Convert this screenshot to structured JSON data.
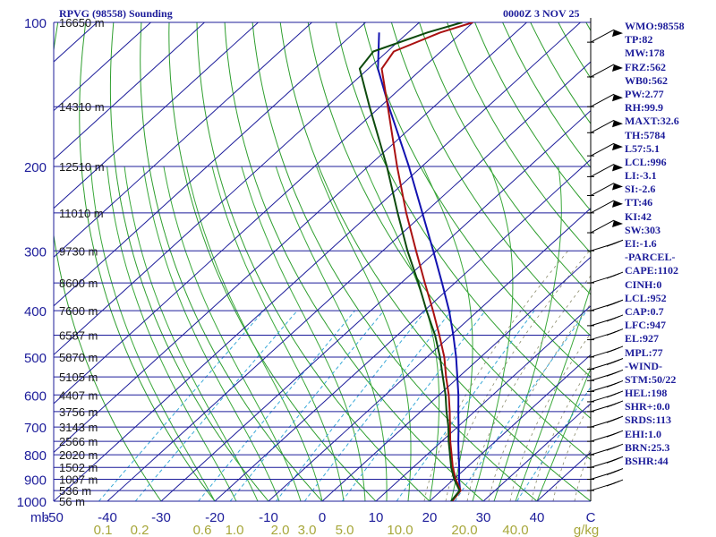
{
  "header": {
    "station": "RPVG (98558) Sounding",
    "time": "0000Z  3 NOV 25"
  },
  "indices": [
    "WMO:98558",
    "TP:82",
    "MW:178",
    "FRZ:562",
    "WB0:562",
    "PW:2.77",
    "RH:99.9",
    "MAXT:32.6",
    "TH:5784",
    "L57:5.1",
    "LCL:996",
    "LI:-3.1",
    "SI:-2.6",
    "TT:46",
    "KI:42",
    "SW:303",
    "EI:-1.6",
    "-PARCEL-",
    "CAPE:1102",
    "CINH:0",
    "LCL:952",
    "CAP:0.7",
    "LFC:947",
    "EL:927",
    "MPL:77",
    "-WIND-",
    "STM:50/22",
    "HEL:198",
    "SHR+:0.0",
    "SRDS:113",
    "EHI:1.0",
    "BRN:25.3",
    "BSHR:44"
  ],
  "colors": {
    "isobar": "#1c1c9a",
    "isotherm": "#1c1c9a",
    "dry_adiabat": "#2e9e2e",
    "moist_adiabat": "#3aa83a",
    "mixing_ratio": "#39a9d8",
    "saturation": "#8a8a6a",
    "temperature": "#aa1111",
    "dewpoint": "#0d4a0d",
    "parcel": "#1212b0",
    "text": "#1c1c9a",
    "mixing_label": "#a7a73a"
  },
  "chart_data": {
    "type": "line",
    "chart_kind": "skew-T log-P sounding",
    "pressure_axis": {
      "range": [
        1000,
        100
      ],
      "ticks": [
        100,
        200,
        300,
        400,
        500,
        600,
        700,
        800,
        900,
        1000
      ],
      "scale": "log",
      "unit_label": "mb"
    },
    "temperature_axis": {
      "range": [
        -50,
        50
      ],
      "ticks": [
        "-50",
        "-40",
        "-30",
        "-20",
        "-10",
        "0",
        "10",
        "20",
        "30",
        "40",
        "C"
      ]
    },
    "mixing_ratio_labels": [
      "0.1",
      "0.2",
      "0.6",
      "1.0",
      "2.0",
      "3.0",
      "5.0",
      "10.0",
      "20.0",
      "40.0",
      "g/kg"
    ],
    "mixing_ratio_values": [
      0.1,
      0.2,
      0.6,
      1.0,
      2.0,
      3.0,
      5.0,
      10.0,
      20.0,
      40.0
    ],
    "height_labels": [
      {
        "p": 100,
        "label": "16650 m"
      },
      {
        "p": 150,
        "label": "14310 m"
      },
      {
        "p": 200,
        "label": "12510 m"
      },
      {
        "p": 250,
        "label": "11010 m"
      },
      {
        "p": 300,
        "label": "9730 m"
      },
      {
        "p": 350,
        "label": "8600 m"
      },
      {
        "p": 400,
        "label": "7600 m"
      },
      {
        "p": 450,
        "label": "6587 m"
      },
      {
        "p": 500,
        "label": "5870 m"
      },
      {
        "p": 550,
        "label": "5105 m"
      },
      {
        "p": 600,
        "label": "4407 m"
      },
      {
        "p": 650,
        "label": "3756 m"
      },
      {
        "p": 700,
        "label": "3143 m"
      },
      {
        "p": 750,
        "label": "2566 m"
      },
      {
        "p": 800,
        "label": "2020 m"
      },
      {
        "p": 850,
        "label": "1502 m"
      },
      {
        "p": 900,
        "label": "1007 m"
      },
      {
        "p": 950,
        "label": "536 m"
      },
      {
        "p": 1000,
        "label": "56 m"
      }
    ],
    "temperature": [
      [
        1000,
        24.2
      ],
      [
        950,
        23.6
      ],
      [
        900,
        20.4
      ],
      [
        850,
        17.4
      ],
      [
        800,
        14.6
      ],
      [
        750,
        11.6
      ],
      [
        700,
        8.6
      ],
      [
        650,
        5.4
      ],
      [
        600,
        1.8
      ],
      [
        550,
        -2.4
      ],
      [
        500,
        -6.8
      ],
      [
        450,
        -12.2
      ],
      [
        400,
        -18.4
      ],
      [
        350,
        -25.6
      ],
      [
        300,
        -33.8
      ],
      [
        250,
        -43.4
      ],
      [
        200,
        -54.6
      ],
      [
        150,
        -68.6
      ],
      [
        125,
        -77.5
      ],
      [
        115,
        -78.8
      ],
      [
        105,
        -74
      ],
      [
        100,
        -70
      ]
    ],
    "dewpoint": [
      [
        1000,
        24.0
      ],
      [
        950,
        23.4
      ],
      [
        900,
        20.1
      ],
      [
        850,
        17.1
      ],
      [
        800,
        14.3
      ],
      [
        750,
        11.3
      ],
      [
        700,
        8.3
      ],
      [
        650,
        4.8
      ],
      [
        600,
        1.2
      ],
      [
        550,
        -3.0
      ],
      [
        500,
        -7.6
      ],
      [
        450,
        -13.0
      ],
      [
        400,
        -19.6
      ],
      [
        350,
        -26.8
      ],
      [
        300,
        -35.4
      ],
      [
        250,
        -45.0
      ],
      [
        200,
        -56.5
      ],
      [
        150,
        -72.0
      ],
      [
        125,
        -81.6
      ],
      [
        115,
        -82.6
      ],
      [
        105,
        -76.4
      ],
      [
        100,
        -72
      ]
    ],
    "parcel": [
      [
        1000,
        24.2
      ],
      [
        950,
        23.5
      ],
      [
        900,
        21.0
      ],
      [
        850,
        18.6
      ],
      [
        800,
        15.9
      ],
      [
        750,
        13.1
      ],
      [
        700,
        10.2
      ],
      [
        650,
        7.0
      ],
      [
        600,
        3.6
      ],
      [
        550,
        -0.3
      ],
      [
        500,
        -4.6
      ],
      [
        450,
        -9.6
      ],
      [
        400,
        -15.4
      ],
      [
        350,
        -22.4
      ],
      [
        300,
        -30.6
      ],
      [
        250,
        -40.4
      ],
      [
        200,
        -52.4
      ],
      [
        150,
        -68.4
      ],
      [
        125,
        -78.2
      ],
      [
        105,
        -85.4
      ]
    ]
  }
}
